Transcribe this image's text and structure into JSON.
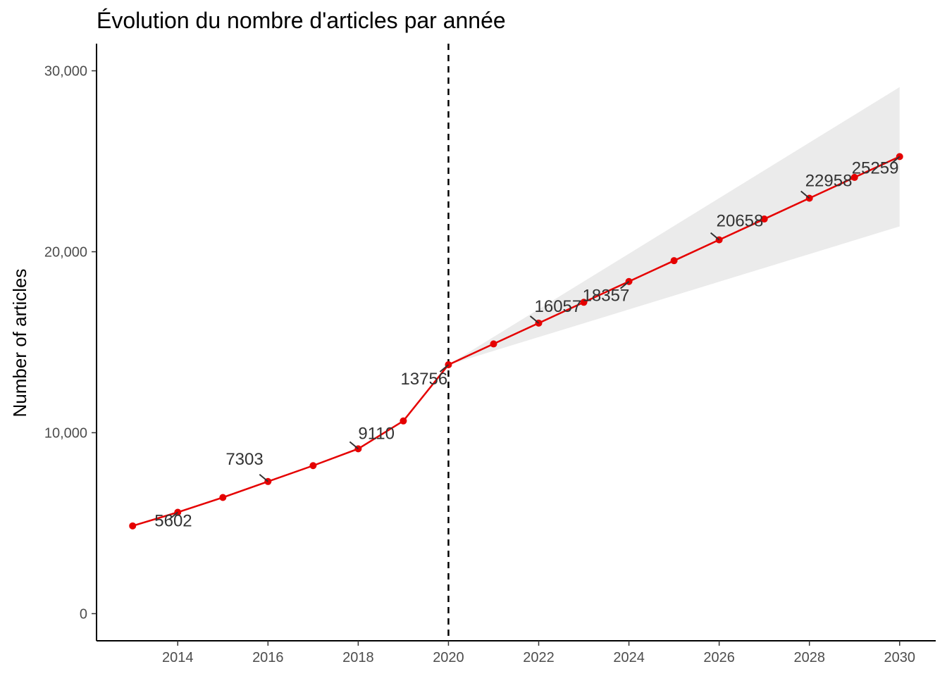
{
  "chart_data": {
    "type": "line",
    "title": "Évolution du nombre d'articles par année",
    "xlabel": "",
    "ylabel": "Number of articles",
    "xlim": [
      2012.2,
      2030.8
    ],
    "ylim": [
      -1500,
      31500
    ],
    "x_ticks": [
      2014,
      2016,
      2018,
      2020,
      2022,
      2024,
      2026,
      2028,
      2030
    ],
    "x_tick_labels": [
      "2014",
      "2016",
      "2018",
      "2020",
      "2022",
      "2024",
      "2026",
      "2028",
      "2030"
    ],
    "y_ticks": [
      0,
      10000,
      20000,
      30000
    ],
    "y_tick_labels": [
      "0",
      "10,000",
      "20,000",
      "30,000"
    ],
    "grid": false,
    "vline": {
      "x": 2020,
      "style": "dashed"
    },
    "series": [
      {
        "color": "#e50000",
        "x": [
          2013,
          2014,
          2015,
          2016,
          2017,
          2018,
          2019,
          2020,
          2021,
          2022,
          2023,
          2024,
          2025,
          2026,
          2027,
          2028,
          2029,
          2030
        ],
        "y": [
          4850,
          5602,
          6420,
          7303,
          8180,
          9110,
          10650,
          13756,
          14906,
          16057,
          17207,
          18357,
          19507,
          20658,
          21808,
          22958,
          24109,
          25259
        ]
      }
    ],
    "confidence_band": {
      "color": "#ebebeb",
      "x": [
        2020,
        2030
      ],
      "lower": [
        13756,
        21400
      ],
      "upper": [
        13756,
        29100
      ]
    },
    "data_labels": [
      {
        "x": 2014,
        "y": 5602,
        "text": "5602"
      },
      {
        "x": 2016,
        "y": 7303,
        "text": "7303"
      },
      {
        "x": 2018,
        "y": 9110,
        "text": "9110"
      },
      {
        "x": 2020,
        "y": 13756,
        "text": "13756"
      },
      {
        "x": 2022,
        "y": 16057,
        "text": "16057"
      },
      {
        "x": 2024,
        "y": 18357,
        "text": "18357"
      },
      {
        "x": 2026,
        "y": 20658,
        "text": "20658"
      },
      {
        "x": 2028,
        "y": 22958,
        "text": "22958"
      },
      {
        "x": 2030,
        "y": 25259,
        "text": "25259"
      }
    ]
  }
}
